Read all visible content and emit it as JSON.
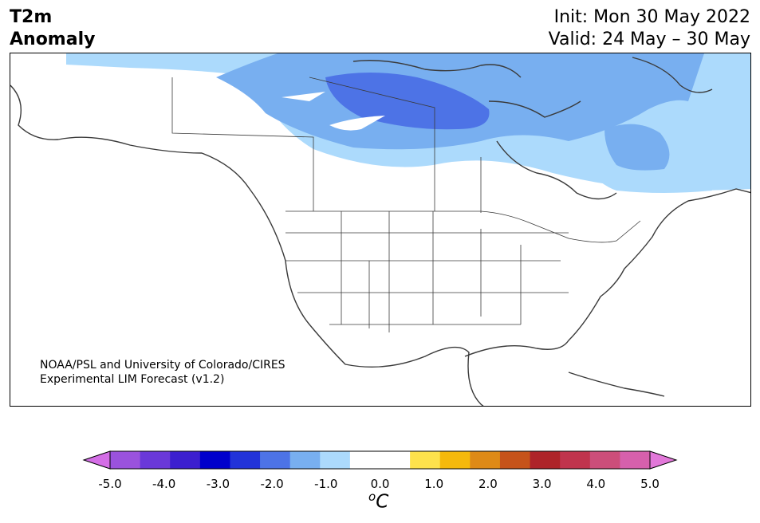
{
  "title": {
    "left_line1": "T2m",
    "left_line2": "Anomaly",
    "right_line1": "Init: Mon 30 May 2022",
    "right_line2": "Valid: 24 May – 30 May"
  },
  "credit": {
    "line1": "NOAA/PSL and University of Colorado/CIRES",
    "line2": "Experimental LIM Forecast (v1.2)"
  },
  "colorbar": {
    "ticks": [
      "-5.0",
      "-4.0",
      "-3.0",
      "-2.0",
      "-1.0",
      "0.0",
      "1.0",
      "2.0",
      "3.0",
      "4.0",
      "5.0"
    ],
    "unit_sup": "o",
    "unit_main": "C",
    "colors": [
      "#d46ee6",
      "#9a52dd",
      "#6a38d9",
      "#3c1fcf",
      "#0000cc",
      "#2233d9",
      "#4d73e6",
      "#78aff0",
      "#acdafc",
      "#ffffff",
      "#ffffff",
      "#fde24c",
      "#f5b90c",
      "#de8a17",
      "#c6531a",
      "#ae2429",
      "#c0344d",
      "#cc4e7a",
      "#d660ac",
      "#e278d9"
    ]
  },
  "map_colors": {
    "land_outline": "#3a3a3a",
    "anomaly_minus_half": "#acdafc",
    "anomaly_minus_one": "#78aff0",
    "anomaly_minus_one_half": "#4d73e6"
  }
}
